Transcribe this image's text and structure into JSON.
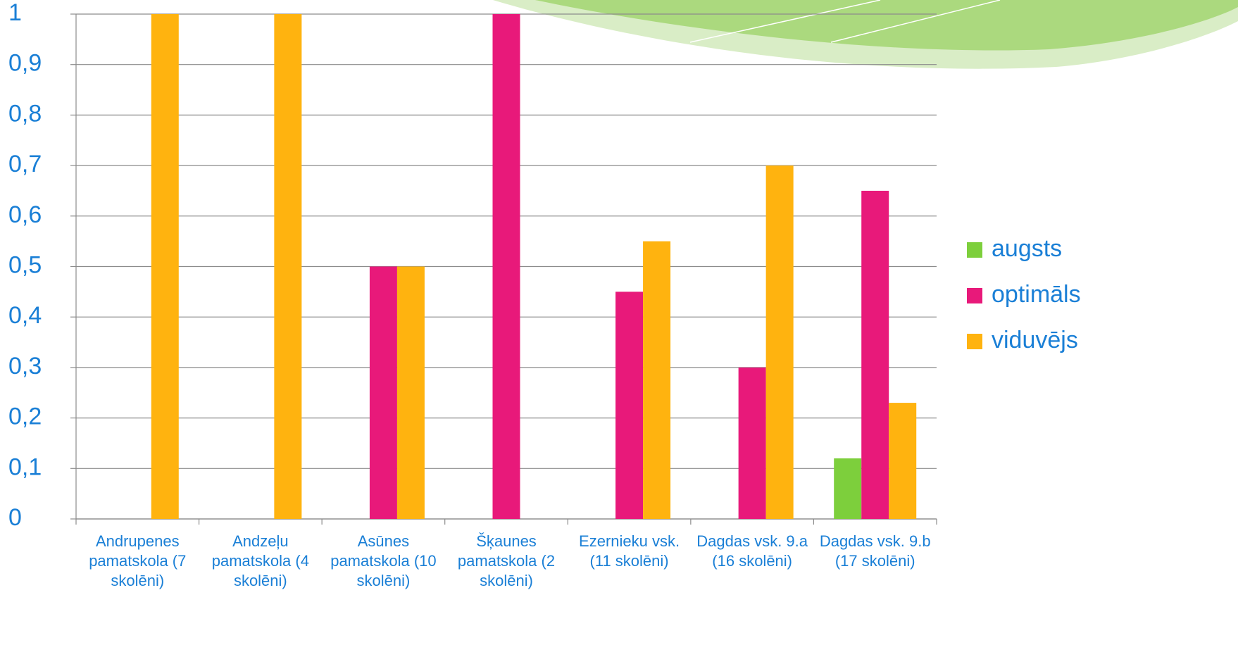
{
  "chart_data": {
    "type": "bar",
    "categories": [
      "Andrupenes pamatskola (7 skolēni)",
      "Andzeļu pamatskola (4 skolēni)",
      "Asūnes pamatskola (10 skolēni)",
      "Šķaunes pamatskola (2 skolēni)",
      "Ezernieku vsk. (11 skolēni)",
      "Dagdas vsk. 9.a (16 skolēni)",
      "Dagdas vsk. 9.b (17 skolēni)"
    ],
    "series": [
      {
        "name": "augsts",
        "color": "#7dcf3c",
        "values": [
          0,
          0,
          0,
          0,
          0,
          0,
          0.12
        ]
      },
      {
        "name": "optimāls",
        "color": "#e8197a",
        "values": [
          0,
          0,
          0.5,
          1,
          0.45,
          0.3,
          0.65
        ]
      },
      {
        "name": "viduvējs",
        "color": "#ffb30f",
        "values": [
          1,
          1,
          0.5,
          0,
          0.55,
          0.7,
          0.23
        ]
      }
    ],
    "ylim": [
      0,
      1
    ],
    "yticks": [
      0,
      {
        "value": 0.1,
        "label": "0,1"
      },
      {
        "value": 0.2,
        "label": "0,2"
      },
      {
        "value": 0.3,
        "label": "0,3"
      },
      {
        "value": 0.4,
        "label": "0,4"
      },
      {
        "value": 0.5,
        "label": "0,5"
      },
      {
        "value": 0.6,
        "label": "0,6"
      },
      {
        "value": 0.7,
        "label": "0,7"
      },
      {
        "value": 0.8,
        "label": "0,8"
      },
      {
        "value": 0.9,
        "label": "0,9"
      },
      1
    ],
    "grid": true,
    "legend": "right"
  }
}
